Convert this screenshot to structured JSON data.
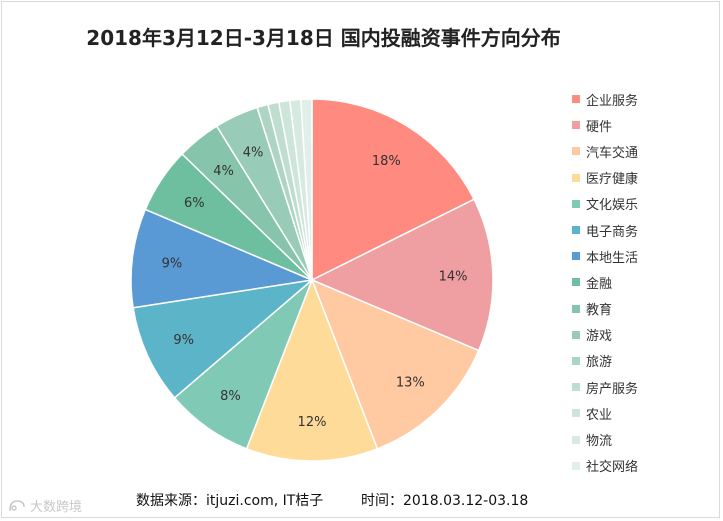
{
  "chart_data": {
    "type": "pie",
    "title": "2018年3月12日-3月18日  国内投融资事件方向分布",
    "slices": [
      {
        "name": "企业服务",
        "value": 18,
        "label": "18%",
        "color": "#ff8a80"
      },
      {
        "name": "硬件",
        "value": 14,
        "label": "14%",
        "color": "#ef9fa2"
      },
      {
        "name": "汽车交通",
        "value": 13,
        "label": "13%",
        "color": "#ffc9a1"
      },
      {
        "name": "医疗健康",
        "value": 12,
        "label": "12%",
        "color": "#ffdb99"
      },
      {
        "name": "文化娱乐",
        "value": 8,
        "label": "8%",
        "color": "#80c9b5"
      },
      {
        "name": "电子商务",
        "value": 9,
        "label": "9%",
        "color": "#5cb4c8"
      },
      {
        "name": "本地生活",
        "value": 9,
        "label": "9%",
        "color": "#5a9ad4"
      },
      {
        "name": "金融",
        "value": 6,
        "label": "6%",
        "color": "#6ebea0"
      },
      {
        "name": "教育",
        "value": 4,
        "label": "4%",
        "color": "#86c4ac"
      },
      {
        "name": "游戏",
        "value": 4,
        "label": "4%",
        "color": "#98ccb8"
      },
      {
        "name": "旅游",
        "value": 1,
        "label": "",
        "color": "#aed5c3"
      },
      {
        "name": "房产服务",
        "value": 1,
        "label": "",
        "color": "#bfdecf"
      },
      {
        "name": "农业",
        "value": 1,
        "label": "",
        "color": "#cde5da"
      },
      {
        "name": "物流",
        "value": 1,
        "label": "",
        "color": "#d6eae1"
      },
      {
        "name": "社交网络",
        "value": 1,
        "label": "",
        "color": "#e0efe8"
      }
    ],
    "legend_position": "right"
  },
  "footer": {
    "source": "数据来源：itjuzi.com, IT桔子",
    "time": "时间：2018.03.12-03.18"
  },
  "watermark": {
    "text": "大数跨境"
  }
}
